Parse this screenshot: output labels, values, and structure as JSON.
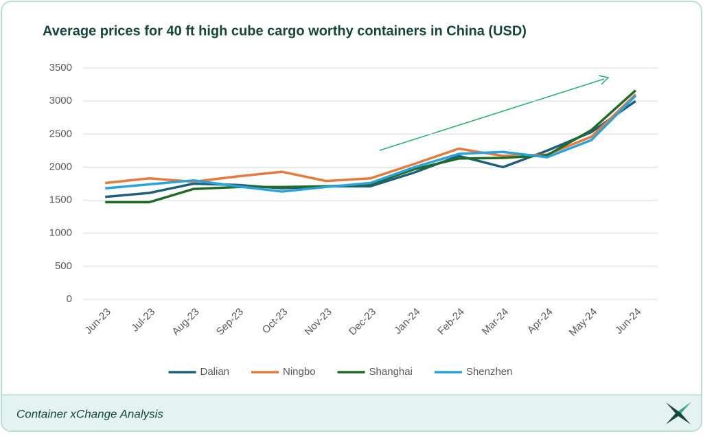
{
  "chart_data": {
    "type": "line",
    "title": "Average prices for 40 ft high cube cargo worthy containers in China (USD)",
    "categories": [
      "Jun-23",
      "Jul-23",
      "Aug-23",
      "Sep-23",
      "Oct-23",
      "Nov-23",
      "Dec-23",
      "Jan-24",
      "Feb-24",
      "Mar-24",
      "Apr-24",
      "May-24",
      "Jun-24"
    ],
    "series": [
      {
        "name": "Dalian",
        "color": "#1f5f7a",
        "values": [
          1550,
          1610,
          1750,
          1730,
          1680,
          1710,
          1710,
          1920,
          2170,
          2000,
          2250,
          2530,
          3000
        ]
      },
      {
        "name": "Ningbo",
        "color": "#e57a3c",
        "values": [
          1760,
          1830,
          1780,
          1860,
          1930,
          1790,
          1830,
          2050,
          2280,
          2170,
          2190,
          2460,
          3100
        ]
      },
      {
        "name": "Shanghai",
        "color": "#1f6b2a",
        "values": [
          1470,
          1470,
          1670,
          1700,
          1700,
          1710,
          1740,
          1970,
          2130,
          2140,
          2180,
          2560,
          3160
        ]
      },
      {
        "name": "Shenzhen",
        "color": "#29a3d9",
        "values": [
          1680,
          1740,
          1800,
          1710,
          1630,
          1700,
          1760,
          2000,
          2200,
          2230,
          2150,
          2410,
          3080
        ]
      }
    ],
    "ylim": [
      0,
      3500
    ],
    "yticks": [
      0,
      500,
      1000,
      1500,
      2000,
      2500,
      3000,
      3500
    ],
    "grid": true,
    "legend": "bottom"
  },
  "footer": {
    "text": "Container xChange Analysis"
  }
}
